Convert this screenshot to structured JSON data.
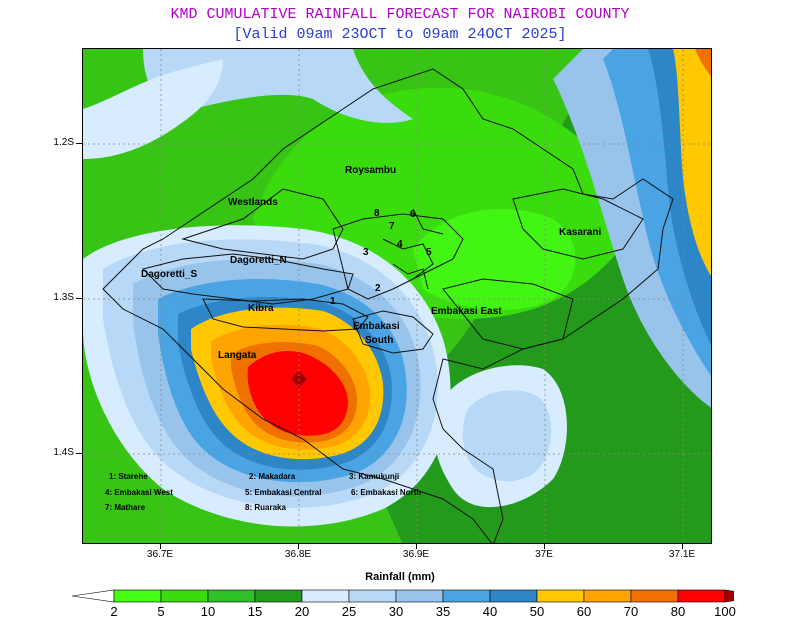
{
  "header": {
    "title": "KMD CUMULATIVE RAINFALL FORECAST FOR NAIROBI COUNTY",
    "subtitle": "[Valid 09am 23OCT to 09am 24OCT 2025]"
  },
  "axes": {
    "y_ticks": [
      "1.2S",
      "1.3S",
      "1.4S"
    ],
    "x_ticks": [
      "36.7E",
      "36.8E",
      "36.9E",
      "37E",
      "37.1E"
    ]
  },
  "regions": {
    "roysambu": "Roysambu",
    "westlands": "Westlands",
    "kasarani": "Kasarani",
    "dagoretti_s": "Dagoretti_S",
    "dagoretti_n": "Dagoretti_N",
    "kibra": "Kibra",
    "langata": "Langata",
    "embakasi_east": "Embakasi East",
    "embakasi_south_1": "Embakasi",
    "embakasi_south_2": "South",
    "num_1": "1",
    "num_2": "2",
    "num_3": "3",
    "num_4": "4",
    "num_5": "5",
    "num_6": "6",
    "num_7": "7",
    "num_8": "8"
  },
  "legend_keys": [
    "1: Starehe",
    "2: Makadara",
    "3: Kamukunji",
    "4: Embakasi West",
    "5: Embakasi Central",
    "6: Embakasi North",
    "7: Mathare",
    "8: Ruaraka"
  ],
  "colorbar": {
    "title": "Rainfall (mm)",
    "levels": [
      "2",
      "5",
      "10",
      "15",
      "20",
      "25",
      "30",
      "35",
      "40",
      "50",
      "60",
      "70",
      "80",
      "100"
    ],
    "colors": [
      "#46ff14",
      "#3bdc0e",
      "#2fc02a",
      "#249a1c",
      "#d8ecff",
      "#b8d8f8",
      "#98c4ec",
      "#4aa4e4",
      "#2c86c8",
      "#ffc800",
      "#ffa400",
      "#f07000",
      "#ff0000"
    ],
    "under_color": "#ffffff",
    "over_color": "#a00000"
  }
}
